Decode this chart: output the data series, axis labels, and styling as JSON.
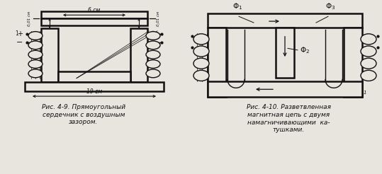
{
  "bg_color": "#e8e4de",
  "line_color": "#111111",
  "caption1_line1": "Рис. 4-9. Прямоугольный",
  "caption1_line2": "сердечник с воздушным",
  "caption1_line3": "зазором.",
  "caption2_line1": "Рис. 4-10. Разветвленная",
  "caption2_line2": "магнитная цепь с двумя",
  "caption2_line3": "намагничивающими  ка-",
  "caption2_line4": "тушками.",
  "fig_width": 5.39,
  "fig_height": 2.46,
  "dpi": 100
}
